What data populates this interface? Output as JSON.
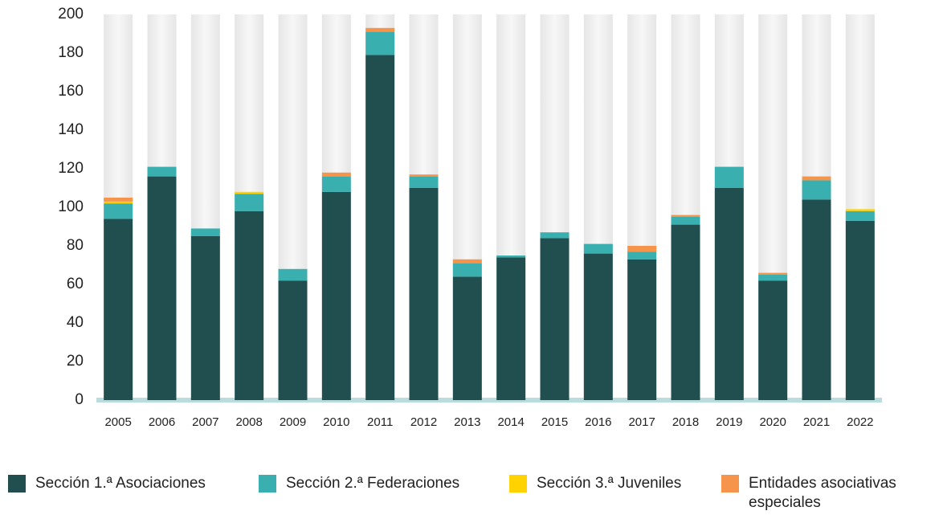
{
  "chart_data": {
    "type": "stacked_bar",
    "categories": [
      "2005",
      "2006",
      "2007",
      "2008",
      "2009",
      "2010",
      "2011",
      "2012",
      "2013",
      "2014",
      "2015",
      "2016",
      "2017",
      "2018",
      "2019",
      "2020",
      "2021",
      "2022"
    ],
    "series": [
      {
        "name": "Sección 1.ª Asociaciones",
        "color": "#214f50",
        "values": [
          94,
          116,
          85,
          98,
          62,
          108,
          179,
          110,
          64,
          74,
          84,
          76,
          73,
          91,
          110,
          62,
          104,
          93
        ]
      },
      {
        "name": "Sección 2.ª Federaciones",
        "color": "#3aafb0",
        "values": [
          8,
          5,
          4,
          9,
          6,
          8,
          12,
          6,
          7,
          1,
          3,
          5,
          4,
          4,
          11,
          3,
          10,
          5
        ]
      },
      {
        "name": "Sección 3.ª Juveniles",
        "color": "#ffd200",
        "values": [
          1,
          0,
          0,
          1,
          0,
          0,
          0,
          0,
          0,
          0,
          0,
          0,
          0,
          0,
          0,
          0,
          0,
          1
        ]
      },
      {
        "name": "Entidades asociativas especiales",
        "color": "#f5944a",
        "values": [
          2,
          0,
          0,
          0,
          0,
          2,
          2,
          1,
          2,
          0,
          0,
          0,
          3,
          1,
          0,
          1,
          2,
          0
        ]
      }
    ],
    "ylim": [
      0,
      200
    ],
    "yticks": [
      0,
      20,
      40,
      60,
      80,
      100,
      120,
      140,
      160,
      180,
      200
    ],
    "legend": "bottom"
  }
}
